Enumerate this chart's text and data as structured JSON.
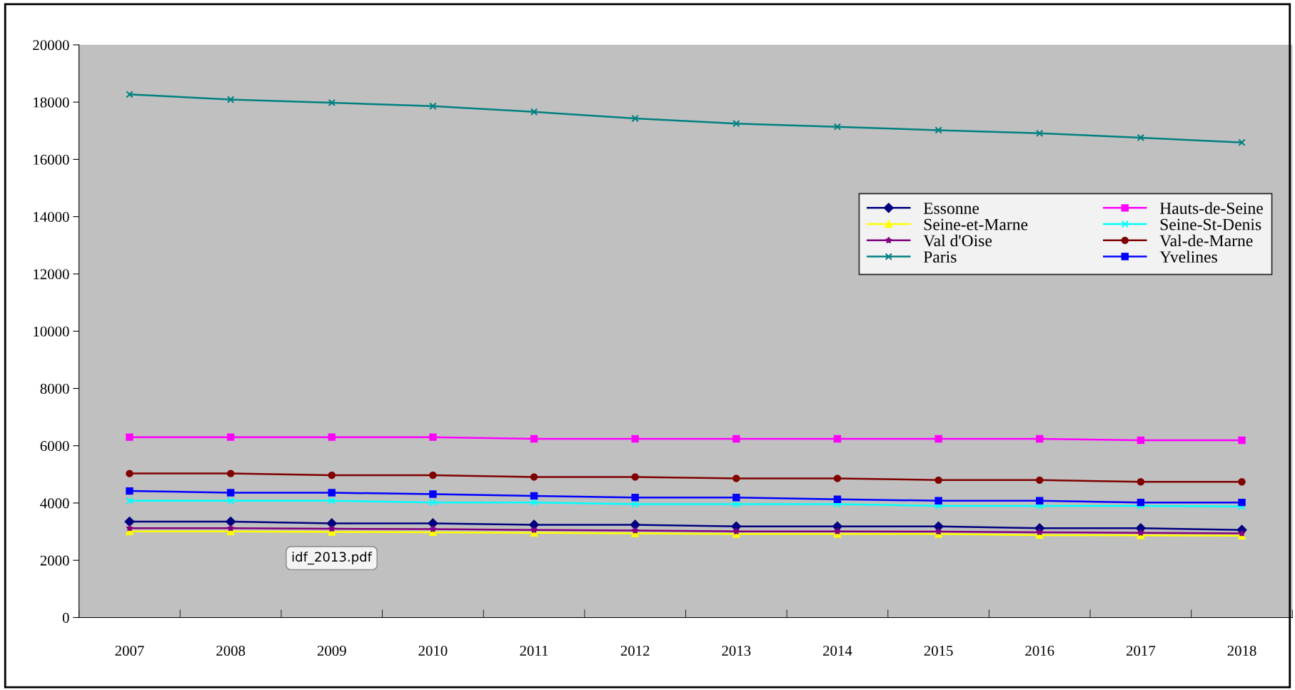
{
  "chart_data": {
    "type": "line",
    "categories": [
      "2007",
      "2008",
      "2009",
      "2010",
      "2011",
      "2012",
      "2013",
      "2014",
      "2015",
      "2016",
      "2017",
      "2018"
    ],
    "series": [
      {
        "name": "Essonne",
        "color": "#000080",
        "marker": "diamond",
        "values": [
          3350,
          3350,
          3290,
          3290,
          3240,
          3240,
          3180,
          3180,
          3180,
          3120,
          3120,
          3060
        ]
      },
      {
        "name": "Hauts-de-Seine",
        "color": "#ff00ff",
        "marker": "square",
        "values": [
          6300,
          6300,
          6300,
          6300,
          6240,
          6240,
          6240,
          6240,
          6240,
          6240,
          6190,
          6190
        ]
      },
      {
        "name": "Seine-et-Marne",
        "color": "#ffff00",
        "marker": "triangle",
        "values": [
          3010,
          3010,
          2990,
          2980,
          2960,
          2940,
          2920,
          2920,
          2920,
          2880,
          2870,
          2860
        ]
      },
      {
        "name": "Seine-St-Denis",
        "color": "#00ffff",
        "marker": "cross",
        "values": [
          4080,
          4080,
          4080,
          4020,
          4020,
          3960,
          3960,
          3960,
          3900,
          3900,
          3900,
          3880
        ]
      },
      {
        "name": "Val d'Oise",
        "color": "#800080",
        "marker": "star",
        "values": [
          3120,
          3120,
          3100,
          3090,
          3060,
          3040,
          3010,
          3010,
          3000,
          2980,
          2960,
          2940
        ]
      },
      {
        "name": "Val-de-Marne",
        "color": "#800000",
        "marker": "circle",
        "values": [
          5030,
          5030,
          4970,
          4970,
          4910,
          4910,
          4860,
          4860,
          4800,
          4800,
          4740,
          4740
        ]
      },
      {
        "name": "Paris",
        "color": "#008080",
        "marker": "cross",
        "values": [
          18270,
          18090,
          17980,
          17860,
          17660,
          17430,
          17250,
          17140,
          17020,
          16910,
          16760,
          16590
        ]
      },
      {
        "name": "Yvelines",
        "color": "#0000ff",
        "marker": "square",
        "values": [
          4420,
          4360,
          4360,
          4310,
          4250,
          4190,
          4190,
          4130,
          4080,
          4080,
          4020,
          4020
        ]
      }
    ],
    "ylim": [
      0,
      20000
    ],
    "yticks": [
      0,
      2000,
      4000,
      6000,
      8000,
      10000,
      12000,
      14000,
      16000,
      18000,
      20000
    ],
    "grid": false,
    "legend": "top right",
    "annotations": [
      "idf_2013.pdf"
    ]
  }
}
